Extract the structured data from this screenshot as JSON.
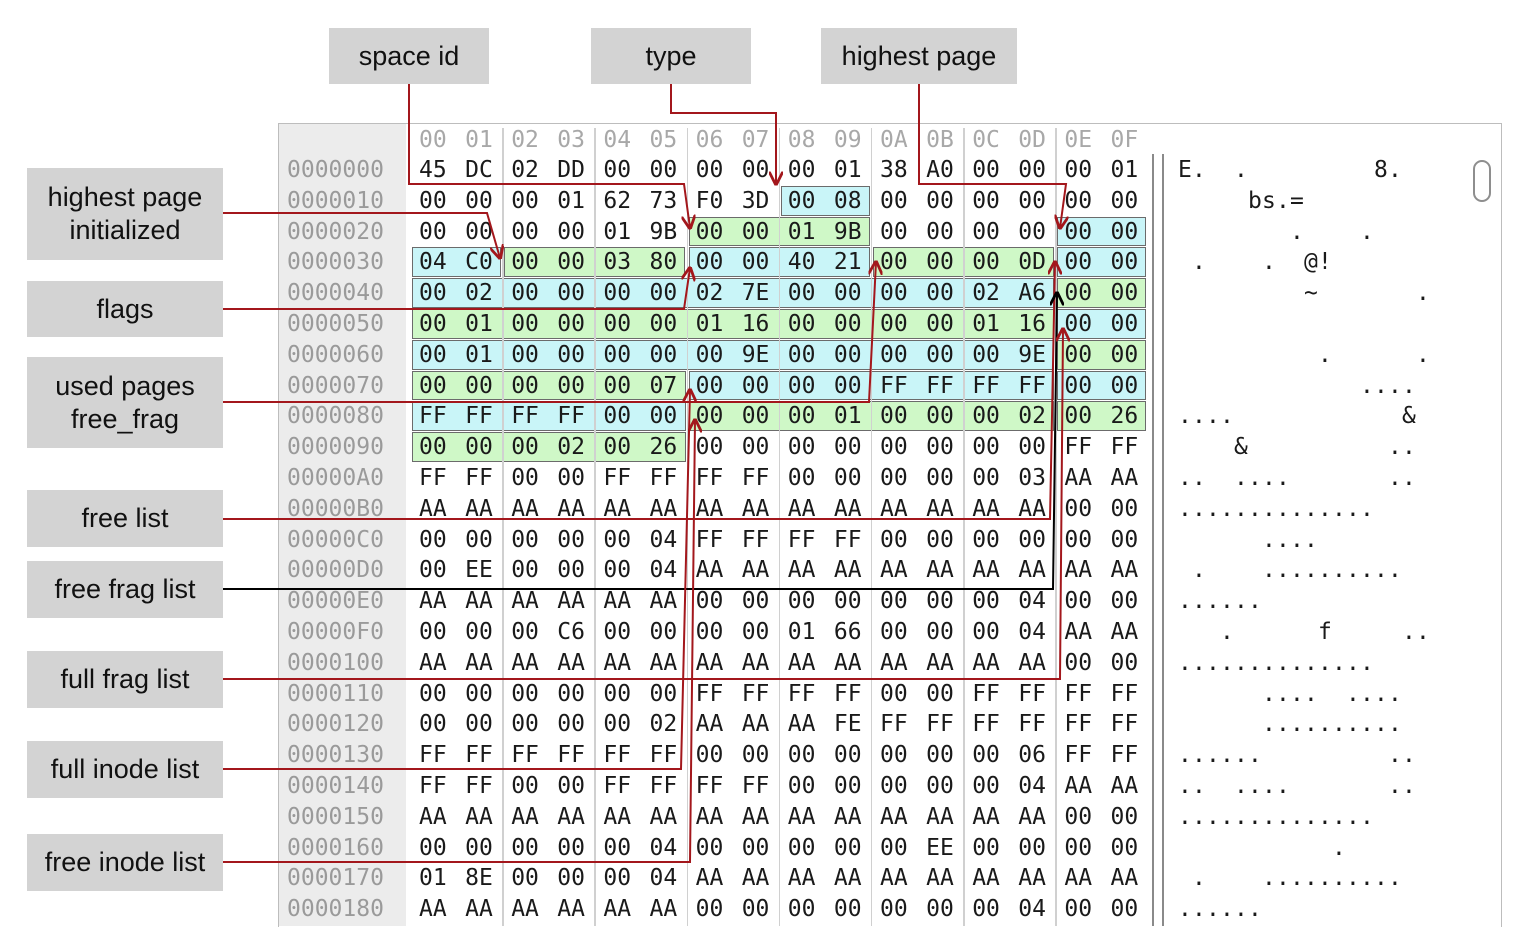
{
  "header_bytes": [
    "00",
    "01",
    "02",
    "03",
    "04",
    "05",
    "06",
    "07",
    "08",
    "09",
    "0A",
    "0B",
    "0C",
    "0D",
    "0E",
    "0F"
  ],
  "rows": [
    {
      "addr": "0000000",
      "bytes": [
        "45",
        "DC",
        "02",
        "DD",
        "00",
        "00",
        "00",
        "00",
        "00",
        "01",
        "38",
        "A0",
        "00",
        "00",
        "00",
        "01"
      ],
      "ascii": "E.  .         8."
    },
    {
      "addr": "0000010",
      "bytes": [
        "00",
        "00",
        "00",
        "01",
        "62",
        "73",
        "F0",
        "3D",
        "00",
        "08",
        "00",
        "00",
        "00",
        "00",
        "00",
        "00"
      ],
      "ascii": "     bs.="
    },
    {
      "addr": "0000020",
      "bytes": [
        "00",
        "00",
        "00",
        "00",
        "01",
        "9B",
        "00",
        "00",
        "01",
        "9B",
        "00",
        "00",
        "00",
        "00",
        "00",
        "00"
      ],
      "ascii": "        .    ."
    },
    {
      "addr": "0000030",
      "bytes": [
        "04",
        "C0",
        "00",
        "00",
        "03",
        "80",
        "00",
        "00",
        "40",
        "21",
        "00",
        "00",
        "00",
        "0D",
        "00",
        "00"
      ],
      "ascii": " .    .  @!"
    },
    {
      "addr": "0000040",
      "bytes": [
        "00",
        "02",
        "00",
        "00",
        "00",
        "00",
        "02",
        "7E",
        "00",
        "00",
        "00",
        "00",
        "02",
        "A6",
        "00",
        "00"
      ],
      "ascii": "         ~       ."
    },
    {
      "addr": "0000050",
      "bytes": [
        "00",
        "01",
        "00",
        "00",
        "00",
        "00",
        "01",
        "16",
        "00",
        "00",
        "00",
        "00",
        "01",
        "16",
        "00",
        "00"
      ],
      "ascii": ""
    },
    {
      "addr": "0000060",
      "bytes": [
        "00",
        "01",
        "00",
        "00",
        "00",
        "00",
        "00",
        "9E",
        "00",
        "00",
        "00",
        "00",
        "00",
        "9E",
        "00",
        "00"
      ],
      "ascii": "          .      ."
    },
    {
      "addr": "0000070",
      "bytes": [
        "00",
        "00",
        "00",
        "00",
        "00",
        "07",
        "00",
        "00",
        "00",
        "00",
        "FF",
        "FF",
        "FF",
        "FF",
        "00",
        "00"
      ],
      "ascii": "             ...."
    },
    {
      "addr": "0000080",
      "bytes": [
        "FF",
        "FF",
        "FF",
        "FF",
        "00",
        "00",
        "00",
        "00",
        "00",
        "01",
        "00",
        "00",
        "00",
        "02",
        "00",
        "26"
      ],
      "ascii": "....            &"
    },
    {
      "addr": "0000090",
      "bytes": [
        "00",
        "00",
        "00",
        "02",
        "00",
        "26",
        "00",
        "00",
        "00",
        "00",
        "00",
        "00",
        "00",
        "00",
        "FF",
        "FF"
      ],
      "ascii": "    &          .."
    },
    {
      "addr": "00000A0",
      "bytes": [
        "FF",
        "FF",
        "00",
        "00",
        "FF",
        "FF",
        "FF",
        "FF",
        "00",
        "00",
        "00",
        "00",
        "00",
        "03",
        "AA",
        "AA"
      ],
      "ascii": "..  ....       .."
    },
    {
      "addr": "00000B0",
      "bytes": [
        "AA",
        "AA",
        "AA",
        "AA",
        "AA",
        "AA",
        "AA",
        "AA",
        "AA",
        "AA",
        "AA",
        "AA",
        "AA",
        "AA",
        "00",
        "00"
      ],
      "ascii": ".............."
    },
    {
      "addr": "00000C0",
      "bytes": [
        "00",
        "00",
        "00",
        "00",
        "00",
        "04",
        "FF",
        "FF",
        "FF",
        "FF",
        "00",
        "00",
        "00",
        "00",
        "00",
        "00"
      ],
      "ascii": "      ...."
    },
    {
      "addr": "00000D0",
      "bytes": [
        "00",
        "EE",
        "00",
        "00",
        "00",
        "04",
        "AA",
        "AA",
        "AA",
        "AA",
        "AA",
        "AA",
        "AA",
        "AA",
        "AA",
        "AA"
      ],
      "ascii": " .    .........."
    },
    {
      "addr": "00000E0",
      "bytes": [
        "AA",
        "AA",
        "AA",
        "AA",
        "AA",
        "AA",
        "00",
        "00",
        "00",
        "00",
        "00",
        "00",
        "00",
        "04",
        "00",
        "00"
      ],
      "ascii": "......"
    },
    {
      "addr": "00000F0",
      "bytes": [
        "00",
        "00",
        "00",
        "C6",
        "00",
        "00",
        "00",
        "00",
        "01",
        "66",
        "00",
        "00",
        "00",
        "04",
        "AA",
        "AA"
      ],
      "ascii": "   .      f     .."
    },
    {
      "addr": "0000100",
      "bytes": [
        "AA",
        "AA",
        "AA",
        "AA",
        "AA",
        "AA",
        "AA",
        "AA",
        "AA",
        "AA",
        "AA",
        "AA",
        "AA",
        "AA",
        "00",
        "00"
      ],
      "ascii": ".............."
    },
    {
      "addr": "0000110",
      "bytes": [
        "00",
        "00",
        "00",
        "00",
        "00",
        "00",
        "FF",
        "FF",
        "FF",
        "FF",
        "00",
        "00",
        "FF",
        "FF",
        "FF",
        "FF"
      ],
      "ascii": "      ....  ...."
    },
    {
      "addr": "0000120",
      "bytes": [
        "00",
        "00",
        "00",
        "00",
        "00",
        "02",
        "AA",
        "AA",
        "AA",
        "FE",
        "FF",
        "FF",
        "FF",
        "FF",
        "FF",
        "FF"
      ],
      "ascii": "      .........."
    },
    {
      "addr": "0000130",
      "bytes": [
        "FF",
        "FF",
        "FF",
        "FF",
        "FF",
        "FF",
        "00",
        "00",
        "00",
        "00",
        "00",
        "00",
        "00",
        "06",
        "FF",
        "FF"
      ],
      "ascii": "......         .."
    },
    {
      "addr": "0000140",
      "bytes": [
        "FF",
        "FF",
        "00",
        "00",
        "FF",
        "FF",
        "FF",
        "FF",
        "00",
        "00",
        "00",
        "00",
        "00",
        "04",
        "AA",
        "AA"
      ],
      "ascii": "..  ....       .."
    },
    {
      "addr": "0000150",
      "bytes": [
        "AA",
        "AA",
        "AA",
        "AA",
        "AA",
        "AA",
        "AA",
        "AA",
        "AA",
        "AA",
        "AA",
        "AA",
        "AA",
        "AA",
        "00",
        "00"
      ],
      "ascii": ".............."
    },
    {
      "addr": "0000160",
      "bytes": [
        "00",
        "00",
        "00",
        "00",
        "00",
        "04",
        "00",
        "00",
        "00",
        "00",
        "00",
        "EE",
        "00",
        "00",
        "00",
        "00"
      ],
      "ascii": "           ."
    },
    {
      "addr": "0000170",
      "bytes": [
        "01",
        "8E",
        "00",
        "00",
        "00",
        "04",
        "AA",
        "AA",
        "AA",
        "AA",
        "AA",
        "AA",
        "AA",
        "AA",
        "AA",
        "AA"
      ],
      "ascii": " .    .........."
    },
    {
      "addr": "0000180",
      "bytes": [
        "AA",
        "AA",
        "AA",
        "AA",
        "AA",
        "AA",
        "00",
        "00",
        "00",
        "00",
        "00",
        "00",
        "00",
        "04",
        "00",
        "00"
      ],
      "ascii": "......"
    }
  ],
  "labels": {
    "space_id": "space id",
    "type": "type",
    "highest_page": "highest page",
    "highest_page_initialized": "highest page\ninitialized",
    "flags": "flags",
    "used_pages_free_frag": "used pages\nfree_frag",
    "free_list": "free list",
    "free_frag_list": "free frag list",
    "full_frag_list": "full frag list",
    "full_inode_list": "full inode list",
    "free_inode_list": "free inode list"
  },
  "colors": {
    "highlight_green": "#cff8c7",
    "highlight_cyan": "#c9f5f8",
    "leader_red": "#a3171c",
    "leader_black": "#000000",
    "label_bg": "#d3d3d3"
  }
}
